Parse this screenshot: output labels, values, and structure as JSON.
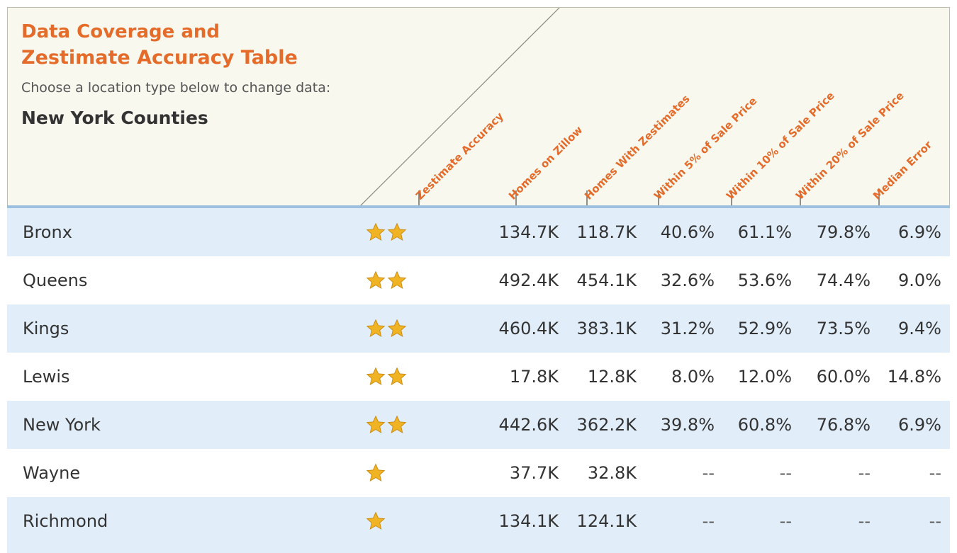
{
  "header": {
    "title_line1": "Data Coverage and",
    "title_line2": "Zestimate Accuracy Table",
    "subtitle": "Choose a location type below to change data:",
    "location": "New York Counties"
  },
  "columns": [
    "Zestimate Accuracy",
    "Homes on Zillow",
    "Homes With Zestimates",
    "Within 5% of Sale Price",
    "Within 10% of Sale Price",
    "Within 20% of Sale Price",
    "Median Error"
  ],
  "rows": [
    {
      "name": "Bronx",
      "stars": 2,
      "homes_on_zillow": "134.7K",
      "homes_with_zestimates": "118.7K",
      "within5": "40.6%",
      "within10": "61.1%",
      "within20": "79.8%",
      "median_error": "6.9%"
    },
    {
      "name": "Queens",
      "stars": 2,
      "homes_on_zillow": "492.4K",
      "homes_with_zestimates": "454.1K",
      "within5": "32.6%",
      "within10": "53.6%",
      "within20": "74.4%",
      "median_error": "9.0%"
    },
    {
      "name": "Kings",
      "stars": 2,
      "homes_on_zillow": "460.4K",
      "homes_with_zestimates": "383.1K",
      "within5": "31.2%",
      "within10": "52.9%",
      "within20": "73.5%",
      "median_error": "9.4%"
    },
    {
      "name": "Lewis",
      "stars": 2,
      "homes_on_zillow": "17.8K",
      "homes_with_zestimates": "12.8K",
      "within5": "8.0%",
      "within10": "12.0%",
      "within20": "60.0%",
      "median_error": "14.8%"
    },
    {
      "name": "New York",
      "stars": 2,
      "homes_on_zillow": "442.6K",
      "homes_with_zestimates": "362.2K",
      "within5": "39.8%",
      "within10": "60.8%",
      "within20": "76.8%",
      "median_error": "6.9%"
    },
    {
      "name": "Wayne",
      "stars": 1,
      "homes_on_zillow": "37.7K",
      "homes_with_zestimates": "32.8K",
      "within5": "--",
      "within10": "--",
      "within20": "--",
      "median_error": "--"
    },
    {
      "name": "Richmond",
      "stars": 1,
      "homes_on_zillow": "134.1K",
      "homes_with_zestimates": "124.1K",
      "within5": "--",
      "within10": "--",
      "within20": "--",
      "median_error": "--"
    }
  ],
  "colors": {
    "accent": "#e56b2a",
    "row_alt": "#e1eef9",
    "header_bg": "#f8f8ee",
    "star": "#f0b323"
  }
}
